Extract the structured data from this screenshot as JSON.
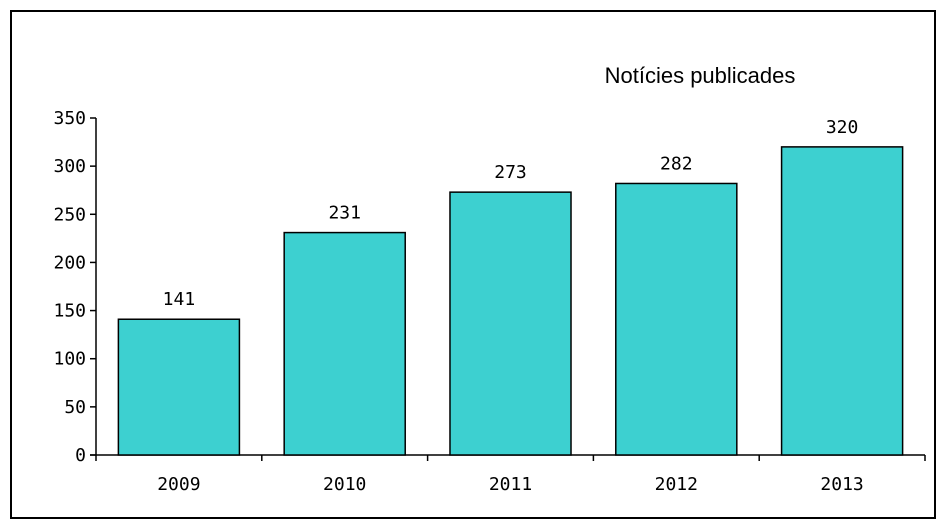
{
  "chart_data": {
    "type": "bar",
    "title": "Notícies publicades",
    "xlabel": "",
    "ylabel": "",
    "categories": [
      "2009",
      "2010",
      "2011",
      "2012",
      "2013"
    ],
    "values": [
      141,
      231,
      273,
      282,
      320
    ],
    "data_labels": [
      "141",
      "231",
      "273",
      "282",
      "320"
    ],
    "y_ticks": [
      "0",
      "50",
      "100",
      "150",
      "200",
      "250",
      "300",
      "350"
    ],
    "ylim": [
      0,
      350
    ],
    "grid": false,
    "legend": "none",
    "bar_color": "#3dd0d0"
  }
}
